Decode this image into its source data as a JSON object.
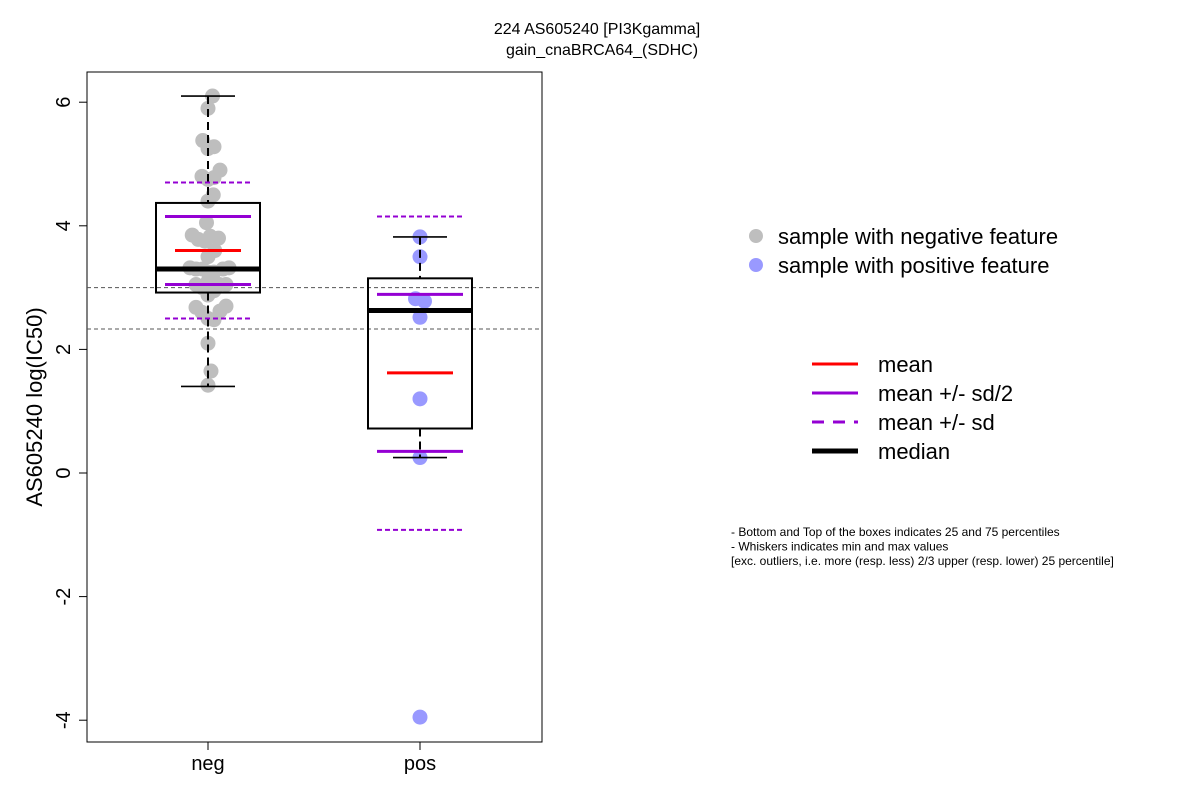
{
  "chart_data": {
    "type": "box",
    "title_line1": "224 AS605240 [PI3Kgamma]",
    "title_line2": "gain_cnaBRCA64_(SDHC)",
    "ylabel": "AS605240 log(IC50)",
    "ylim": [
      -4.3,
      6.5
    ],
    "yticks": [
      -4,
      -2,
      0,
      2,
      4,
      6
    ],
    "ytick_labels": [
      "-4",
      "-2",
      "0",
      "2",
      "4",
      "6"
    ],
    "categories": [
      "neg",
      "pos"
    ],
    "reference_lines": [
      3.0,
      2.33
    ],
    "groups": [
      {
        "name": "neg",
        "color": "#bebebe",
        "q1": 2.92,
        "median": 3.3,
        "q3": 4.37,
        "whisker_low": 1.4,
        "whisker_high": 6.1,
        "mean": 3.6,
        "sd_half_low": 3.05,
        "sd_half_high": 4.15,
        "sd_low": 2.5,
        "sd_high": 4.7,
        "points": [
          {
            "x": 0.06,
            "y": 6.1
          },
          {
            "x": 0.0,
            "y": 5.9
          },
          {
            "x": -0.07,
            "y": 5.38
          },
          {
            "x": 0.0,
            "y": 5.25
          },
          {
            "x": 0.08,
            "y": 5.28
          },
          {
            "x": -0.08,
            "y": 4.8
          },
          {
            "x": 0.0,
            "y": 4.75
          },
          {
            "x": 0.08,
            "y": 4.78
          },
          {
            "x": 0.16,
            "y": 4.9
          },
          {
            "x": 0.07,
            "y": 4.5
          },
          {
            "x": 0.0,
            "y": 4.4
          },
          {
            "x": -0.02,
            "y": 4.05
          },
          {
            "x": -0.21,
            "y": 3.85
          },
          {
            "x": -0.13,
            "y": 3.78
          },
          {
            "x": -0.04,
            "y": 3.75
          },
          {
            "x": 0.03,
            "y": 3.83
          },
          {
            "x": 0.14,
            "y": 3.8
          },
          {
            "x": 0.09,
            "y": 3.6
          },
          {
            "x": 0.0,
            "y": 3.5
          },
          {
            "x": -0.24,
            "y": 3.32
          },
          {
            "x": -0.16,
            "y": 3.3
          },
          {
            "x": -0.07,
            "y": 3.3
          },
          {
            "x": 0.0,
            "y": 3.25
          },
          {
            "x": 0.08,
            "y": 3.25
          },
          {
            "x": 0.2,
            "y": 3.3
          },
          {
            "x": 0.28,
            "y": 3.32
          },
          {
            "x": -0.16,
            "y": 3.05
          },
          {
            "x": -0.08,
            "y": 3.0
          },
          {
            "x": 0.0,
            "y": 3.1
          },
          {
            "x": 0.08,
            "y": 3.0
          },
          {
            "x": 0.15,
            "y": 3.05
          },
          {
            "x": 0.24,
            "y": 3.05
          },
          {
            "x": 0.0,
            "y": 2.88
          },
          {
            "x": 0.08,
            "y": 2.95
          },
          {
            "x": -0.16,
            "y": 2.68
          },
          {
            "x": -0.08,
            "y": 2.6
          },
          {
            "x": 0.0,
            "y": 2.5
          },
          {
            "x": 0.08,
            "y": 2.48
          },
          {
            "x": 0.16,
            "y": 2.62
          },
          {
            "x": 0.24,
            "y": 2.7
          },
          {
            "x": 0.0,
            "y": 2.1
          },
          {
            "x": 0.04,
            "y": 1.65
          },
          {
            "x": 0.0,
            "y": 1.42
          }
        ]
      },
      {
        "name": "pos",
        "color": "#9999ff",
        "q1": 0.72,
        "median": 2.63,
        "q3": 3.15,
        "whisker_low": 0.25,
        "whisker_high": 3.82,
        "mean": 1.62,
        "sd_half_low": 0.35,
        "sd_half_high": 2.89,
        "sd_low": -0.92,
        "sd_high": 4.15,
        "points": [
          {
            "x": 0.0,
            "y": 3.82
          },
          {
            "x": 0.0,
            "y": 3.5
          },
          {
            "x": -0.06,
            "y": 2.82
          },
          {
            "x": 0.06,
            "y": 2.78
          },
          {
            "x": 0.0,
            "y": 2.52
          },
          {
            "x": 0.0,
            "y": 1.2
          },
          {
            "x": 0.0,
            "y": 0.25
          },
          {
            "x": 0.0,
            "y": -3.95
          }
        ]
      }
    ],
    "legend_points": [
      {
        "label": "sample with negative feature",
        "color": "#bebebe"
      },
      {
        "label": "sample with positive feature",
        "color": "#9999ff"
      }
    ],
    "legend_lines": [
      {
        "label": "mean",
        "color": "#ff0000",
        "style": "solid"
      },
      {
        "label": "mean +/- sd/2",
        "color": "#9400d3",
        "style": "solid"
      },
      {
        "label": "mean +/- sd",
        "color": "#9400d3",
        "style": "dashed"
      },
      {
        "label": "median",
        "color": "#000000",
        "style": "thick"
      }
    ],
    "notes": [
      "- Bottom and Top of the boxes indicates 25 and 75 percentiles",
      "- Whiskers indicates min and max values",
      "[exc. outliers, i.e. more (resp. less) 2/3 upper (resp. lower) 25 percentile]"
    ]
  }
}
